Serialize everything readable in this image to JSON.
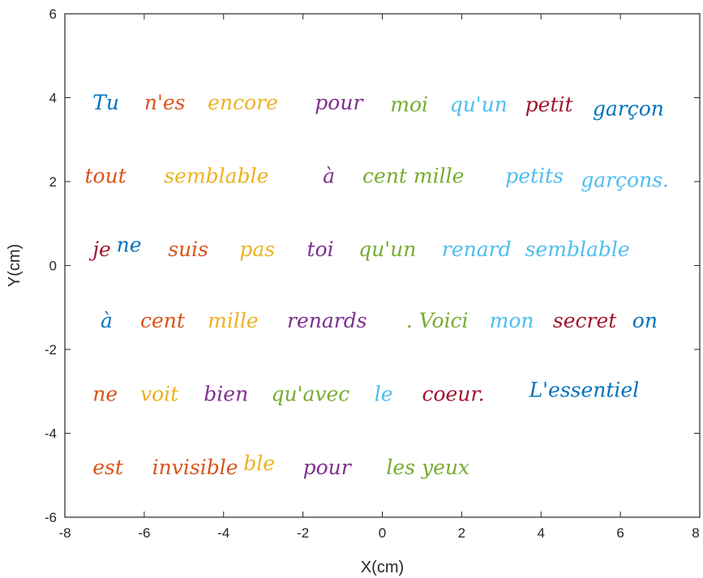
{
  "chart_data": {
    "type": "scatter",
    "xlabel": "X(cm)",
    "ylabel": "Y(cm)",
    "xlim": [
      -8,
      8
    ],
    "ylim": [
      -6,
      6
    ],
    "xticks": [
      "-8",
      "-6",
      "-4",
      "-2",
      "0",
      "2",
      "4",
      "6",
      "8"
    ],
    "yticks": [
      "6",
      "4",
      "2",
      "0",
      "-2",
      "-4",
      "-6"
    ],
    "grid": false,
    "legend": "none",
    "series": [
      {
        "text": "Tu",
        "x": -7.3,
        "y": 3.85,
        "color": "#0072BD"
      },
      {
        "text": "n'es",
        "x": -6.0,
        "y": 3.85,
        "color": "#D95319"
      },
      {
        "text": "encore",
        "x": -4.4,
        "y": 3.85,
        "color": "#EDB120"
      },
      {
        "text": "pour",
        "x": -1.7,
        "y": 3.85,
        "color": "#7E2F8E"
      },
      {
        "text": "moi",
        "x": 0.2,
        "y": 3.8,
        "color": "#77AC30"
      },
      {
        "text": "qu'un",
        "x": 1.7,
        "y": 3.8,
        "color": "#4DBEEE"
      },
      {
        "text": "petit",
        "x": 3.6,
        "y": 3.8,
        "color": "#A2142F"
      },
      {
        "text": "garçon",
        "x": 5.3,
        "y": 3.7,
        "color": "#0072BD"
      },
      {
        "text": "tout",
        "x": -7.5,
        "y": 2.1,
        "color": "#D95319"
      },
      {
        "text": "semblable",
        "x": -5.5,
        "y": 2.1,
        "color": "#EDB120"
      },
      {
        "text": "à",
        "x": -1.5,
        "y": 2.1,
        "color": "#7E2F8E"
      },
      {
        "text": "cent mille",
        "x": -0.5,
        "y": 2.1,
        "color": "#77AC30"
      },
      {
        "text": "petits",
        "x": 3.1,
        "y": 2.1,
        "color": "#4DBEEE"
      },
      {
        "text": "garçons.",
        "x": 5.0,
        "y": 2.0,
        "color": "#4DBEEE"
      },
      {
        "text": "je",
        "x": -7.3,
        "y": 0.35,
        "color": "#A2142F"
      },
      {
        "text": "ne",
        "x": -6.7,
        "y": 0.45,
        "color": "#0072BD"
      },
      {
        "text": "suis",
        "x": -5.4,
        "y": 0.35,
        "color": "#D95319"
      },
      {
        "text": "pas",
        "x": -3.6,
        "y": 0.35,
        "color": "#EDB120"
      },
      {
        "text": "toi",
        "x": -1.9,
        "y": 0.35,
        "color": "#7E2F8E"
      },
      {
        "text": "qu'un",
        "x": -0.6,
        "y": 0.35,
        "color": "#77AC30"
      },
      {
        "text": "renard",
        "x": 1.5,
        "y": 0.35,
        "color": "#4DBEEE"
      },
      {
        "text": "semblable",
        "x": 3.6,
        "y": 0.35,
        "color": "#4DBEEE"
      },
      {
        "text": "à",
        "x": -7.1,
        "y": -1.35,
        "color": "#0072BD"
      },
      {
        "text": "cent",
        "x": -6.1,
        "y": -1.35,
        "color": "#D95319"
      },
      {
        "text": "mille",
        "x": -4.4,
        "y": -1.35,
        "color": "#EDB120"
      },
      {
        "text": "renards",
        "x": -2.4,
        "y": -1.35,
        "color": "#7E2F8E"
      },
      {
        "text": ". Voici",
        "x": 0.6,
        "y": -1.35,
        "color": "#77AC30"
      },
      {
        "text": "mon",
        "x": 2.7,
        "y": -1.35,
        "color": "#4DBEEE"
      },
      {
        "text": "secret",
        "x": 4.3,
        "y": -1.35,
        "color": "#A2142F"
      },
      {
        "text": "on",
        "x": 6.3,
        "y": -1.35,
        "color": "#0072BD"
      },
      {
        "text": "ne",
        "x": -7.3,
        "y": -3.1,
        "color": "#D95319"
      },
      {
        "text": "voit",
        "x": -6.1,
        "y": -3.1,
        "color": "#EDB120"
      },
      {
        "text": "bien",
        "x": -4.5,
        "y": -3.1,
        "color": "#7E2F8E"
      },
      {
        "text": "qu'avec",
        "x": -2.8,
        "y": -3.1,
        "color": "#77AC30"
      },
      {
        "text": "le",
        "x": -0.2,
        "y": -3.1,
        "color": "#4DBEEE"
      },
      {
        "text": "coeur.",
        "x": 1.0,
        "y": -3.1,
        "color": "#A2142F"
      },
      {
        "text": "L'essentiel",
        "x": 3.7,
        "y": -3.0,
        "color": "#0072BD"
      },
      {
        "text": "est",
        "x": -7.3,
        "y": -4.85,
        "color": "#D95319"
      },
      {
        "text": "invisible",
        "x": -5.8,
        "y": -4.85,
        "color": "#D95319"
      },
      {
        "text": "ble",
        "x": -3.5,
        "y": -4.75,
        "color": "#EDB120"
      },
      {
        "text": "pour",
        "x": -2.0,
        "y": -4.85,
        "color": "#7E2F8E"
      },
      {
        "text": "les yeux",
        "x": 0.1,
        "y": -4.85,
        "color": "#77AC30"
      }
    ]
  }
}
